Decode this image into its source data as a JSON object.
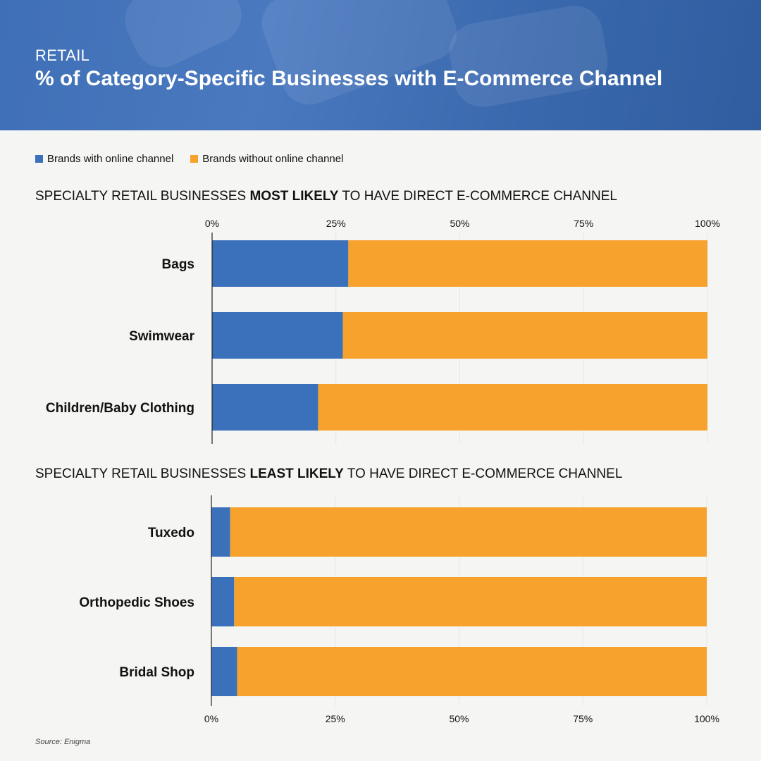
{
  "header": {
    "kicker": "RETAIL",
    "title": "% of Category-Specific Businesses with E-Commerce Channel"
  },
  "legend": {
    "items": [
      {
        "label": "Brands with online channel",
        "color": "#3b70ba"
      },
      {
        "label": "Brands without online channel",
        "color": "#f8a22e"
      }
    ]
  },
  "source": "Source: Enigma",
  "chart_data": [
    {
      "type": "bar",
      "orientation": "horizontal",
      "stacked": true,
      "title_parts": [
        "SPECIALTY RETAIL BUSINESSES ",
        "MOST LIKELY",
        " TO HAVE DIRECT E-COMMERCE CHANNEL"
      ],
      "categories": [
        "Bags",
        "Swimwear",
        "Children/Baby Clothing"
      ],
      "series": [
        {
          "name": "Brands with online channel",
          "values": [
            27.5,
            26.4,
            21.4
          ],
          "color": "#3b70ba"
        },
        {
          "name": "Brands without online channel",
          "values": [
            72.5,
            73.6,
            78.6
          ],
          "color": "#f8a22e"
        }
      ],
      "xlim": [
        0,
        100
      ],
      "ticks": [
        "0%",
        "25%",
        "50%",
        "75%",
        "100%"
      ],
      "tick_position": "top"
    },
    {
      "type": "bar",
      "orientation": "horizontal",
      "stacked": true,
      "title_parts": [
        "SPECIALTY RETAIL BUSINESSES ",
        "LEAST LIKELY",
        " TO HAVE DIRECT E-COMMERCE CHANNEL"
      ],
      "categories": [
        "Tuxedo",
        "Orthopedic Shoes",
        "Bridal Shop"
      ],
      "series": [
        {
          "name": "Brands with online channel",
          "values": [
            3.8,
            4.6,
            5.2
          ],
          "color": "#3b70ba"
        },
        {
          "name": "Brands without online channel",
          "values": [
            96.2,
            95.4,
            94.8
          ],
          "color": "#f8a22e"
        }
      ],
      "xlim": [
        0,
        100
      ],
      "ticks": [
        "0%",
        "25%",
        "50%",
        "75%",
        "100%"
      ],
      "tick_position": "bottom"
    }
  ]
}
